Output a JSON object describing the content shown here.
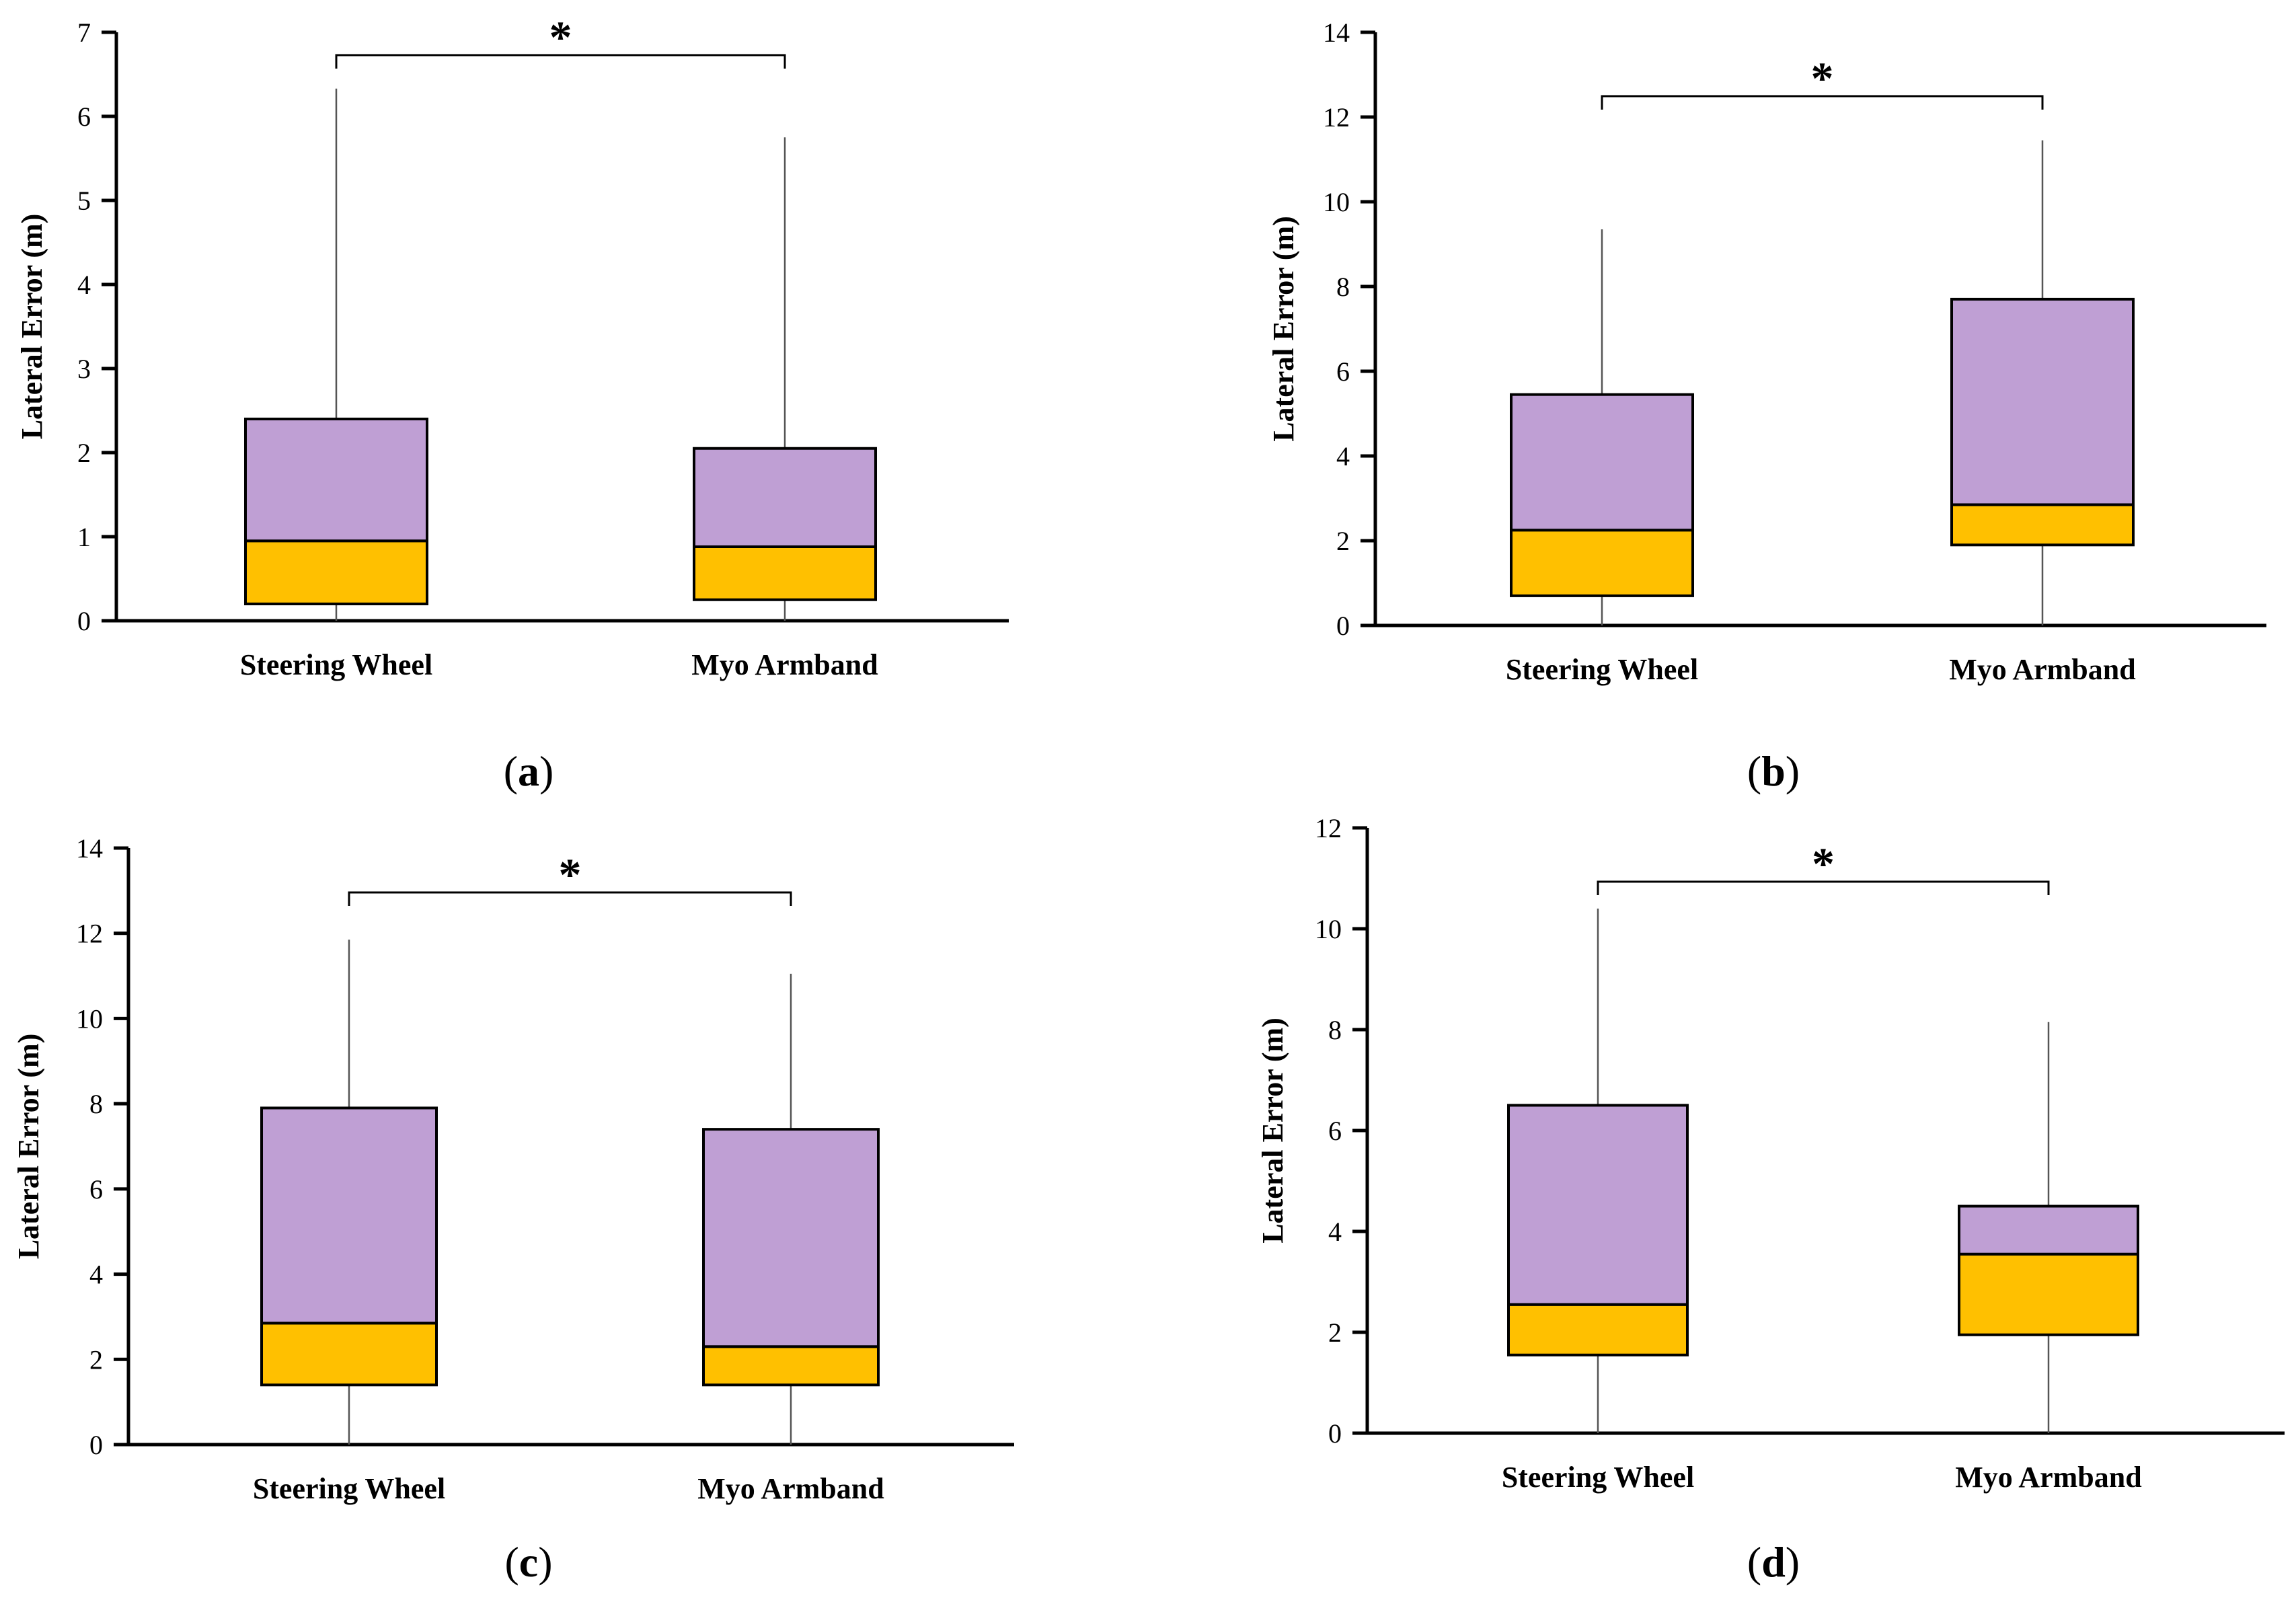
{
  "chart_data": [
    {
      "type": "box",
      "panel_label": "a",
      "ylabel": "Lateral Error (m)",
      "ylim": [
        0,
        7
      ],
      "yticks": [
        0,
        1,
        2,
        3,
        4,
        5,
        6,
        7
      ],
      "categories": [
        "Steering Wheel",
        "Myo Armband"
      ],
      "boxes": [
        {
          "name": "Steering Wheel",
          "min": 0,
          "q1": 0.2,
          "median": 0.95,
          "q3": 2.4,
          "max": 6.33
        },
        {
          "name": "Myo Armband",
          "min": 0,
          "q1": 0.25,
          "median": 0.88,
          "q3": 2.05,
          "max": 5.75
        }
      ],
      "significance": "*"
    },
    {
      "type": "box",
      "panel_label": "b",
      "ylabel": "Lateral Error (m)",
      "ylim": [
        0,
        14
      ],
      "yticks": [
        0,
        2,
        4,
        6,
        8,
        10,
        12,
        14
      ],
      "categories": [
        "Steering Wheel",
        "Myo Armband"
      ],
      "boxes": [
        {
          "name": "Steering Wheel",
          "min": 0,
          "q1": 0.7,
          "median": 2.25,
          "q3": 5.45,
          "max": 9.35
        },
        {
          "name": "Myo Armband",
          "min": 0,
          "q1": 1.9,
          "median": 2.85,
          "q3": 7.7,
          "max": 11.45
        }
      ],
      "significance": "*"
    },
    {
      "type": "box",
      "panel_label": "c",
      "ylabel": "Lateral Error (m)",
      "ylim": [
        0,
        14
      ],
      "yticks": [
        0,
        2,
        4,
        6,
        8,
        10,
        12,
        14
      ],
      "categories": [
        "Steering Wheel",
        "Myo Armband"
      ],
      "boxes": [
        {
          "name": "Steering Wheel",
          "min": 0,
          "q1": 1.4,
          "median": 2.85,
          "q3": 7.9,
          "max": 11.85
        },
        {
          "name": "Myo Armband",
          "min": 0,
          "q1": 1.4,
          "median": 2.3,
          "q3": 7.4,
          "max": 11.05
        }
      ],
      "significance": "*"
    },
    {
      "type": "box",
      "panel_label": "d",
      "ylabel": "Lateral Error (m)",
      "ylim": [
        0,
        12
      ],
      "yticks": [
        0,
        2,
        4,
        6,
        8,
        10,
        12
      ],
      "categories": [
        "Steering Wheel",
        "Myo Armband"
      ],
      "boxes": [
        {
          "name": "Steering Wheel",
          "min": 0,
          "q1": 1.55,
          "median": 2.55,
          "q3": 6.5,
          "max": 10.4
        },
        {
          "name": "Myo Armband",
          "min": 0,
          "q1": 1.95,
          "median": 3.55,
          "q3": 4.5,
          "max": 8.15
        }
      ],
      "significance": "*"
    }
  ],
  "colors": {
    "upper_box": "#bf9fd4",
    "lower_box": "#ffc000",
    "line": "#000000",
    "whisker": "#555555"
  }
}
